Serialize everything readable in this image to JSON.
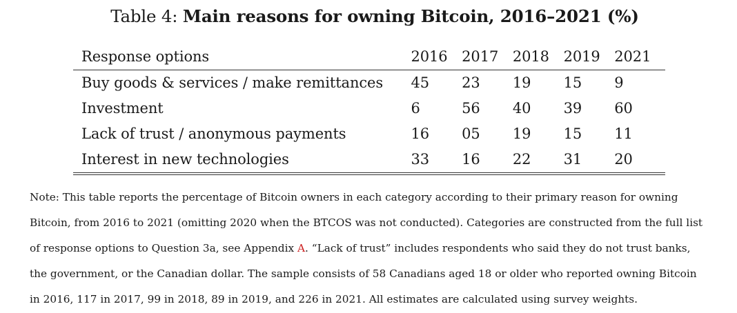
{
  "caption": {
    "prefix": "Table 4: ",
    "title": "Main reasons for owning Bitcoin, 2016–2021 (%)"
  },
  "table": {
    "columns": [
      "Response options",
      "2016",
      "2017",
      "2018",
      "2019",
      "2021"
    ],
    "rows": [
      {
        "label": "Buy goods & services / make remittances",
        "values": [
          "45",
          "23",
          "19",
          "15",
          "9"
        ]
      },
      {
        "label": "Investment",
        "values": [
          "6",
          "56",
          "40",
          "39",
          "60"
        ]
      },
      {
        "label": "Lack of trust / anonymous payments",
        "values": [
          "16",
          "05",
          "19",
          "15",
          "11"
        ]
      },
      {
        "label": "Interest in new technologies",
        "values": [
          "33",
          "16",
          "22",
          "31",
          "20"
        ]
      }
    ]
  },
  "note": {
    "line1": "Note: This table reports the percentage of Bitcoin owners in each category according to their primary reason for owning",
    "line2": "Bitcoin, from 2016 to 2021 (omitting 2020 when the BTCOS was not conducted). Categories are constructed from the full list",
    "line3_before": "of response options to Question 3a, see Appendix ",
    "line3_link": "A",
    "line3_after": ". “Lack of trust” includes respondents who said they do not trust banks,",
    "line4": "the government, or the Canadian dollar. The sample consists of 58 Canadians aged 18 or older who reported owning Bitcoin",
    "line5": "in 2016, 117 in 2017, 99 in 2018, 89 in 2019, and 226 in 2021. All estimates are calculated using survey weights."
  },
  "colors": {
    "text": "#1a1a1a",
    "link": "#cc1d1d"
  }
}
